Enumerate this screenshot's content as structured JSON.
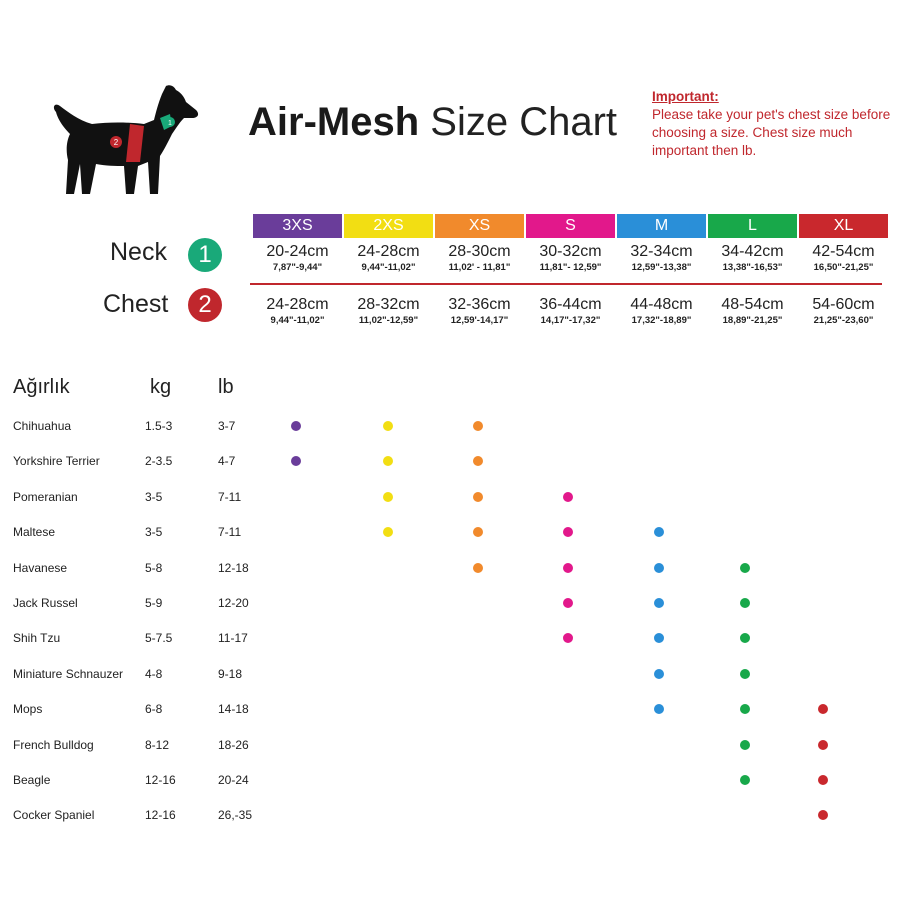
{
  "title": {
    "bold": "Air-Mesh",
    "light": "Size Chart"
  },
  "important": {
    "heading": "Important:",
    "text": "Please take your pet's chest size before choosing a size. Chest size much important then lb."
  },
  "measure_labels": {
    "neck": {
      "label": "Neck",
      "number": "1",
      "color": "#19a979"
    },
    "chest": {
      "label": "Chest",
      "number": "2",
      "color": "#c0272d"
    }
  },
  "dog_badges": {
    "neck": "1",
    "chest": "2"
  },
  "sizes": [
    {
      "label": "3XS",
      "color": "#6a3d9a",
      "neck_cm": "20-24cm",
      "neck_in": "7,87\"-9,44\"",
      "chest_cm": "24-28cm",
      "chest_in": "9,44\"-11,02\""
    },
    {
      "label": "2XS",
      "color": "#f2de13",
      "neck_cm": "24-28cm",
      "neck_in": "9,44\"-11,02\"",
      "chest_cm": "28-32cm",
      "chest_in": "11,02\"-12,59\""
    },
    {
      "label": "XS",
      "color": "#f18a2c",
      "neck_cm": "28-30cm",
      "neck_in": "11,02' - 11,81\"",
      "chest_cm": "32-36cm",
      "chest_in": "12,59'-14,17\""
    },
    {
      "label": "S",
      "color": "#e2188b",
      "neck_cm": "30-32cm",
      "neck_in": "11,81\"- 12,59\"",
      "chest_cm": "36-44cm",
      "chest_in": "14,17\"-17,32\""
    },
    {
      "label": "M",
      "color": "#2a8fd8",
      "neck_cm": "32-34cm",
      "neck_in": "12,59\"-13,38\"",
      "chest_cm": "44-48cm",
      "chest_in": "17,32\"-18,89\""
    },
    {
      "label": "L",
      "color": "#18a84a",
      "neck_cm": "34-42cm",
      "neck_in": "13,38\"-16,53\"",
      "chest_cm": "48-54cm",
      "chest_in": "18,89\"-21,25\""
    },
    {
      "label": "XL",
      "color": "#c9282d",
      "neck_cm": "42-54cm",
      "neck_in": "16,50\"-21,25\"",
      "chest_cm": "54-60cm",
      "chest_in": "21,25\"-23,60\""
    }
  ],
  "table_headers": {
    "breed": "Ağırlık",
    "kg": "kg",
    "lb": "lb"
  },
  "chart_data": {
    "type": "table",
    "columns": [
      "3XS",
      "2XS",
      "XS",
      "S",
      "M",
      "L",
      "XL"
    ],
    "rows": [
      {
        "breed": "Chihuahua",
        "kg": "1.5-3",
        "lb": "3-7",
        "fits": [
          "3XS",
          "2XS",
          "XS"
        ]
      },
      {
        "breed": "Yorkshire Terrier",
        "kg": "2-3.5",
        "lb": "4-7",
        "fits": [
          "3XS",
          "2XS",
          "XS"
        ]
      },
      {
        "breed": "Pomeranian",
        "kg": "3-5",
        "lb": "7-11",
        "fits": [
          "2XS",
          "XS",
          "S"
        ]
      },
      {
        "breed": "Maltese",
        "kg": "3-5",
        "lb": "7-11",
        "fits": [
          "2XS",
          "XS",
          "S",
          "M"
        ]
      },
      {
        "breed": "Havanese",
        "kg": "5-8",
        "lb": "12-18",
        "fits": [
          "XS",
          "S",
          "M",
          "L"
        ]
      },
      {
        "breed": "Jack Russel",
        "kg": "5-9",
        "lb": "12-20",
        "fits": [
          "S",
          "M",
          "L"
        ]
      },
      {
        "breed": "Shih Tzu",
        "kg": "5-7.5",
        "lb": "11-17",
        "fits": [
          "S",
          "M",
          "L"
        ]
      },
      {
        "breed": "Miniature Schnauzer",
        "kg": "4-8",
        "lb": "9-18",
        "fits": [
          "M",
          "L"
        ]
      },
      {
        "breed": "Mops",
        "kg": "6-8",
        "lb": "14-18",
        "fits": [
          "M",
          "L",
          "XL"
        ]
      },
      {
        "breed": "French Bulldog",
        "kg": "8-12",
        "lb": "18-26",
        "fits": [
          "L",
          "XL"
        ]
      },
      {
        "breed": "Beagle",
        "kg": "12-16",
        "lb": "20-24",
        "fits": [
          "L",
          "XL"
        ]
      },
      {
        "breed": "Cocker Spaniel",
        "kg": "12-16",
        "lb": "26,-35",
        "fits": [
          "XL"
        ]
      }
    ]
  }
}
